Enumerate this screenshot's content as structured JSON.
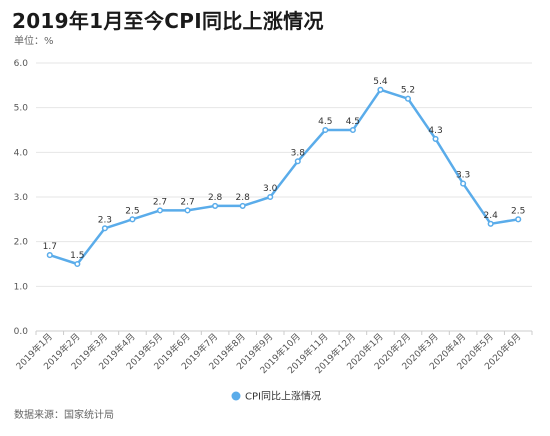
{
  "title": "2019年1月至今CPI同比上涨情况",
  "unit_label": "单位：%",
  "source_label": "数据来源：国家统计局",
  "colors": {
    "series": "#5aacea",
    "grid": "#e6e6e6",
    "axis": "#cccccc"
  },
  "chart_data": {
    "type": "line",
    "title": "2019年1月至今CPI同比上涨情况",
    "xlabel": "",
    "ylabel": "单位：%",
    "ylim": [
      0,
      6
    ],
    "yticks": [
      "0.0",
      "1.0",
      "2.0",
      "3.0",
      "4.0",
      "5.0",
      "6.0"
    ],
    "grid": true,
    "legend_position": "bottom",
    "categories": [
      "2019年1月",
      "2019年2月",
      "2019年3月",
      "2019年4月",
      "2019年5月",
      "2019年6月",
      "2019年7月",
      "2019年8月",
      "2019年9月",
      "2019年10月",
      "2019年11月",
      "2019年12月",
      "2020年1月",
      "2020年2月",
      "2020年3月",
      "2020年4月",
      "2020年5月",
      "2020年6月"
    ],
    "series": [
      {
        "name": "CPI同比上涨情况",
        "values": [
          1.7,
          1.5,
          2.3,
          2.5,
          2.7,
          2.7,
          2.8,
          2.8,
          3.0,
          3.8,
          4.5,
          4.5,
          5.4,
          5.2,
          4.3,
          3.3,
          2.4,
          2.5
        ]
      }
    ]
  }
}
